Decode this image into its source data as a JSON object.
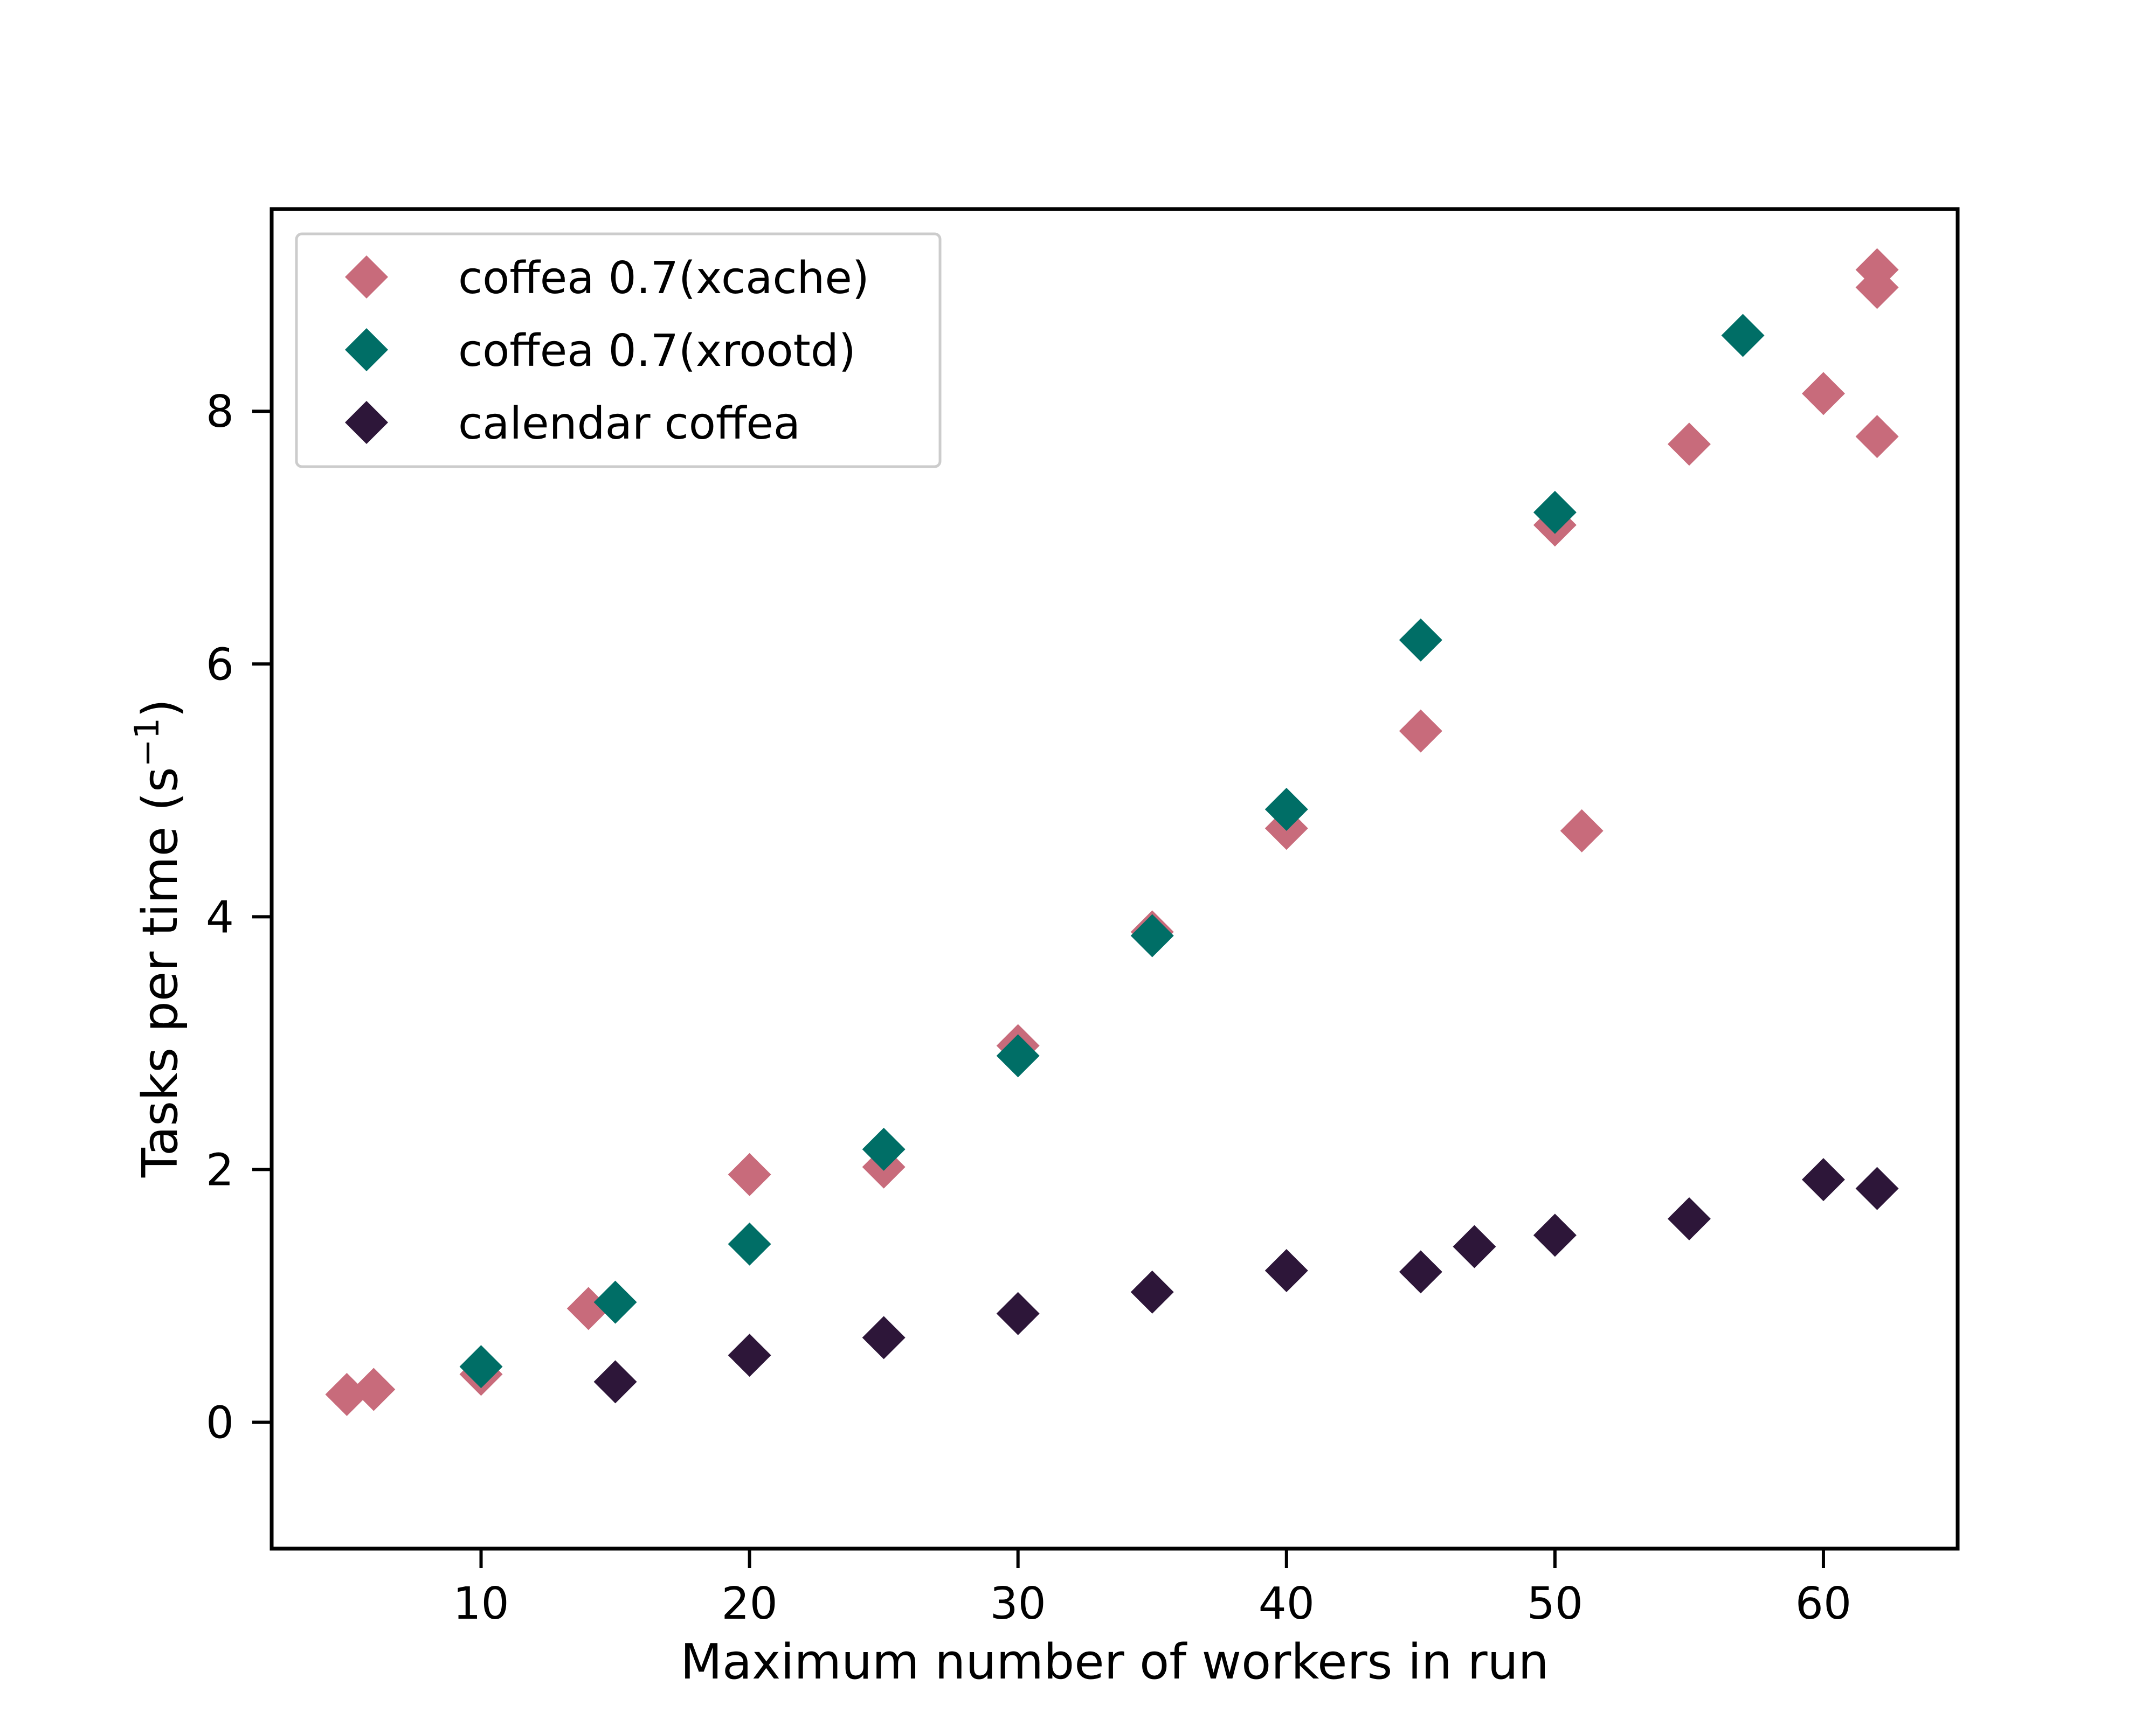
{
  "chart_data": {
    "type": "scatter",
    "title": "",
    "xlabel": "Maximum number of workers in run",
    "ylabel": "Tasks per time (s",
    "ylabel_superscript": "−1",
    "ylabel_suffix": ")",
    "xlim": [
      2.2,
      65
    ],
    "ylim": [
      -1,
      9.6
    ],
    "xticks": [
      10,
      20,
      30,
      40,
      50,
      60
    ],
    "yticks": [
      0,
      2,
      4,
      6,
      8
    ],
    "grid": false,
    "legend_position": "top-left",
    "marker": "diamond",
    "series": [
      {
        "name": "coffea 0.7(xcache)",
        "color": "#c86b7b",
        "points": [
          [
            5,
            0.22
          ],
          [
            6,
            0.26
          ],
          [
            10,
            0.38
          ],
          [
            14,
            0.9
          ],
          [
            20,
            1.96
          ],
          [
            25,
            2.02
          ],
          [
            30,
            2.98
          ],
          [
            35,
            3.88
          ],
          [
            40,
            4.7
          ],
          [
            45,
            5.47
          ],
          [
            50,
            7.1
          ],
          [
            51,
            4.68
          ],
          [
            55,
            7.74
          ],
          [
            60,
            8.14
          ],
          [
            62,
            9.12
          ],
          [
            62,
            8.98
          ],
          [
            62,
            7.8
          ]
        ]
      },
      {
        "name": "coffea 0.7(xrootd)",
        "color": "#006e66",
        "points": [
          [
            10,
            0.44
          ],
          [
            15,
            0.95
          ],
          [
            20,
            1.41
          ],
          [
            25,
            2.16
          ],
          [
            30,
            2.9
          ],
          [
            35,
            3.85
          ],
          [
            40,
            4.85
          ],
          [
            45,
            6.19
          ],
          [
            50,
            7.2
          ],
          [
            57,
            8.6
          ]
        ]
      },
      {
        "name": "calendar coffea",
        "color": "#2d1639",
        "points": [
          [
            15,
            0.32
          ],
          [
            20,
            0.53
          ],
          [
            25,
            0.67
          ],
          [
            30,
            0.86
          ],
          [
            35,
            1.03
          ],
          [
            40,
            1.2
          ],
          [
            45,
            1.19
          ],
          [
            47,
            1.39
          ],
          [
            50,
            1.48
          ],
          [
            55,
            1.61
          ],
          [
            60,
            1.92
          ],
          [
            62,
            1.85
          ]
        ]
      }
    ]
  }
}
